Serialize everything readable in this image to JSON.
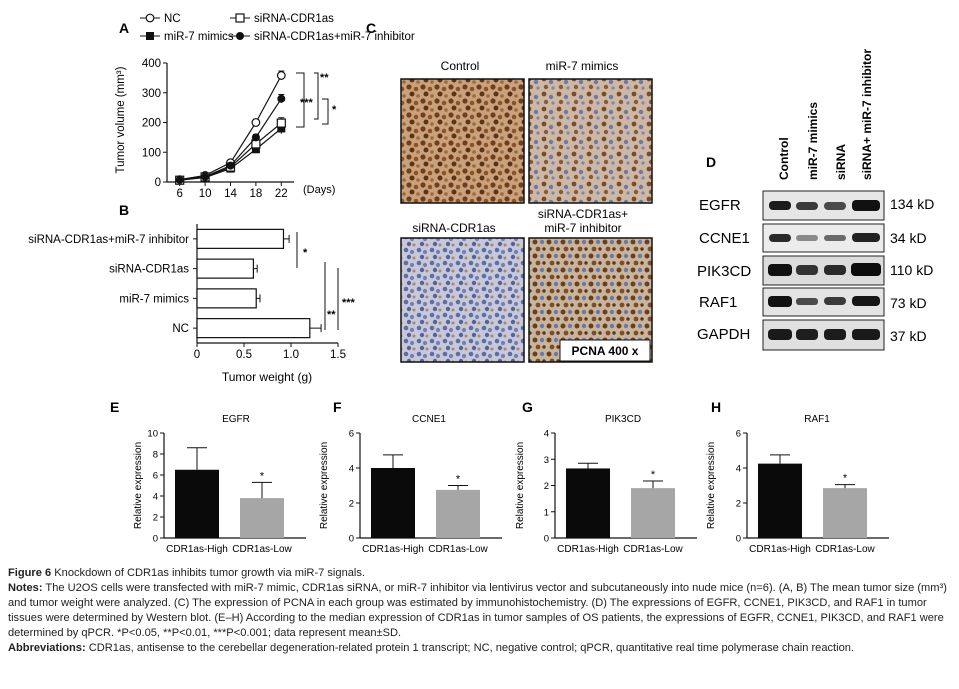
{
  "panel_labels": {
    "A": "A",
    "B": "B",
    "C": "C",
    "D": "D",
    "E": "E",
    "F": "F",
    "G": "G",
    "H": "H"
  },
  "colors": {
    "black_bar": "#0a0a0a",
    "gray_bar": "#a6a6a6",
    "ihc_brown": "#7a4a22",
    "ihc_blue": "#6c7fb0"
  },
  "panelA": {
    "legend": [
      "NC",
      "miR-7 mimics",
      "siRNA-CDR1as",
      "siRNA-CDR1as+miR-7 inhibitor"
    ],
    "ylabel": "Tumor volume (mm³)",
    "xunit": "(Days)",
    "yticks": [
      "0",
      "100",
      "200",
      "300",
      "400"
    ],
    "xticks": [
      "6",
      "10",
      "14",
      "18",
      "22"
    ],
    "sig": [
      "**",
      "***",
      "*"
    ]
  },
  "panelB": {
    "xlabel": "Tumor weight (g)",
    "xticks": [
      "0",
      "0.5",
      "1.0",
      "1.5"
    ],
    "sig": [
      "*",
      "**",
      "***"
    ]
  },
  "panelC": {
    "titles": [
      "Control",
      "miR-7 mimics",
      "siRNA-CDR1as",
      "siRNA-CDR1as+\nmiR-7 inhibitor"
    ],
    "title_line1": "siRNA-CDR1as+",
    "title_line2": "miR-7 inhibitor",
    "stain_label": "PCNA 400 x"
  },
  "panelD": {
    "columns": [
      "Control",
      "miR-7 mimics",
      "siRNA",
      "siRNA+ miR-7 inhibitor"
    ],
    "proteins": [
      "EGFR",
      "CCNE1",
      "PIK3CD",
      "RAF1",
      "GAPDH"
    ],
    "sizes": [
      "134 kD",
      "34 kD",
      "110 kD",
      "73 kD",
      "37 kD"
    ]
  },
  "bar_panels_common": {
    "ylabel": "Relative expression",
    "categories": [
      "CDR1as-High",
      "CDR1as-Low"
    ],
    "sig": "*"
  },
  "chart_data": [
    {
      "id": "A",
      "type": "line",
      "title": "",
      "xlabel": "(Days)",
      "ylabel": "Tumor volume (mm³)",
      "x": [
        6,
        10,
        14,
        18,
        22
      ],
      "xlim": [
        4,
        24
      ],
      "ylim": [
        0,
        400
      ],
      "series": [
        {
          "name": "NC",
          "values": [
            8,
            22,
            65,
            200,
            358
          ],
          "errors": [
            3,
            5,
            8,
            10,
            15
          ],
          "marker": "open-circle"
        },
        {
          "name": "miR-7 mimics",
          "values": [
            6,
            15,
            45,
            110,
            180
          ],
          "errors": [
            3,
            4,
            6,
            10,
            18
          ],
          "marker": "filled-square"
        },
        {
          "name": "siRNA-CDR1as",
          "values": [
            6,
            17,
            50,
            128,
            198
          ],
          "errors": [
            3,
            4,
            6,
            10,
            18
          ],
          "marker": "open-square"
        },
        {
          "name": "siRNA-CDR1as+miR-7 inhibitor",
          "values": [
            7,
            18,
            55,
            150,
            280
          ],
          "errors": [
            3,
            4,
            7,
            10,
            14
          ],
          "marker": "filled-circle"
        }
      ]
    },
    {
      "id": "B",
      "type": "bar",
      "orientation": "horizontal",
      "xlabel": "Tumor weight (g)",
      "xlim": [
        0,
        1.5
      ],
      "categories": [
        "siRNA-CDR1as+miR-7 inhibitor",
        "siRNA-CDR1as",
        "miR-7 mimics",
        "NC"
      ],
      "values": [
        0.92,
        0.6,
        0.63,
        1.2
      ],
      "errors": [
        0.06,
        0.04,
        0.04,
        0.12
      ]
    },
    {
      "id": "E",
      "type": "bar",
      "title": "EGFR",
      "ylabel": "Relative expression",
      "categories": [
        "CDR1as-High",
        "CDR1as-Low"
      ],
      "values": [
        6.5,
        3.8
      ],
      "errors": [
        2.1,
        1.5
      ],
      "ylim": [
        0,
        10
      ],
      "yticks": [
        "0",
        "2",
        "4",
        "6",
        "8",
        "10"
      ]
    },
    {
      "id": "F",
      "type": "bar",
      "title": "CCNE1",
      "ylabel": "Relative expression",
      "categories": [
        "CDR1as-High",
        "CDR1as-Low"
      ],
      "values": [
        4.0,
        2.75
      ],
      "errors": [
        0.75,
        0.25
      ],
      "ylim": [
        0,
        6
      ],
      "yticks": [
        "0",
        "2",
        "4",
        "6"
      ]
    },
    {
      "id": "G",
      "type": "bar",
      "title": "PIK3CD",
      "ylabel": "Relative expression",
      "categories": [
        "CDR1as-High",
        "CDR1as-Low"
      ],
      "values": [
        2.65,
        1.9
      ],
      "errors": [
        0.2,
        0.27
      ],
      "ylim": [
        0,
        4
      ],
      "yticks": [
        "0",
        "1",
        "2",
        "3",
        "4"
      ]
    },
    {
      "id": "H",
      "type": "bar",
      "title": "RAF1",
      "ylabel": "Relative expression",
      "categories": [
        "CDR1as-High",
        "CDR1as-Low"
      ],
      "values": [
        4.25,
        2.85
      ],
      "errors": [
        0.5,
        0.2
      ],
      "ylim": [
        0,
        6
      ],
      "yticks": [
        "0",
        "2",
        "4",
        "6"
      ]
    }
  ],
  "caption": {
    "fig_label": "Figure 6",
    "fig_title": "Knockdown of CDR1as inhibits tumor growth via miR-7 signals.",
    "notes_label": "Notes:",
    "notes_text": "The U2OS cells were transfected with miR-7 mimic, CDR1as siRNA, or miR-7 inhibitor via lentivirus vector and subcutaneously into nude mice (n=6). (A, B) The mean tumor size (mm³) and tumor weight were analyzed. (C) The expression of PCNA in each group was estimated by immunohistochemistry. (D) The expressions of EGFR, CCNE1, PIK3CD, and RAF1 in tumor tissues were determined by Western blot. (E–H) According to the median expression of CDR1as in tumor samples of OS patients, the expressions of EGFR, CCNE1, PIK3CD, and RAF1 were determined by qPCR. *P<0.05, **P<0.01, ***P<0.001; data represent mean±SD.",
    "abbr_label": "Abbreviations:",
    "abbr_text": "CDR1as, antisense to the cerebellar degeneration-related protein 1 transcript; NC, negative control; qPCR, quantitative real time polymerase chain reaction."
  }
}
